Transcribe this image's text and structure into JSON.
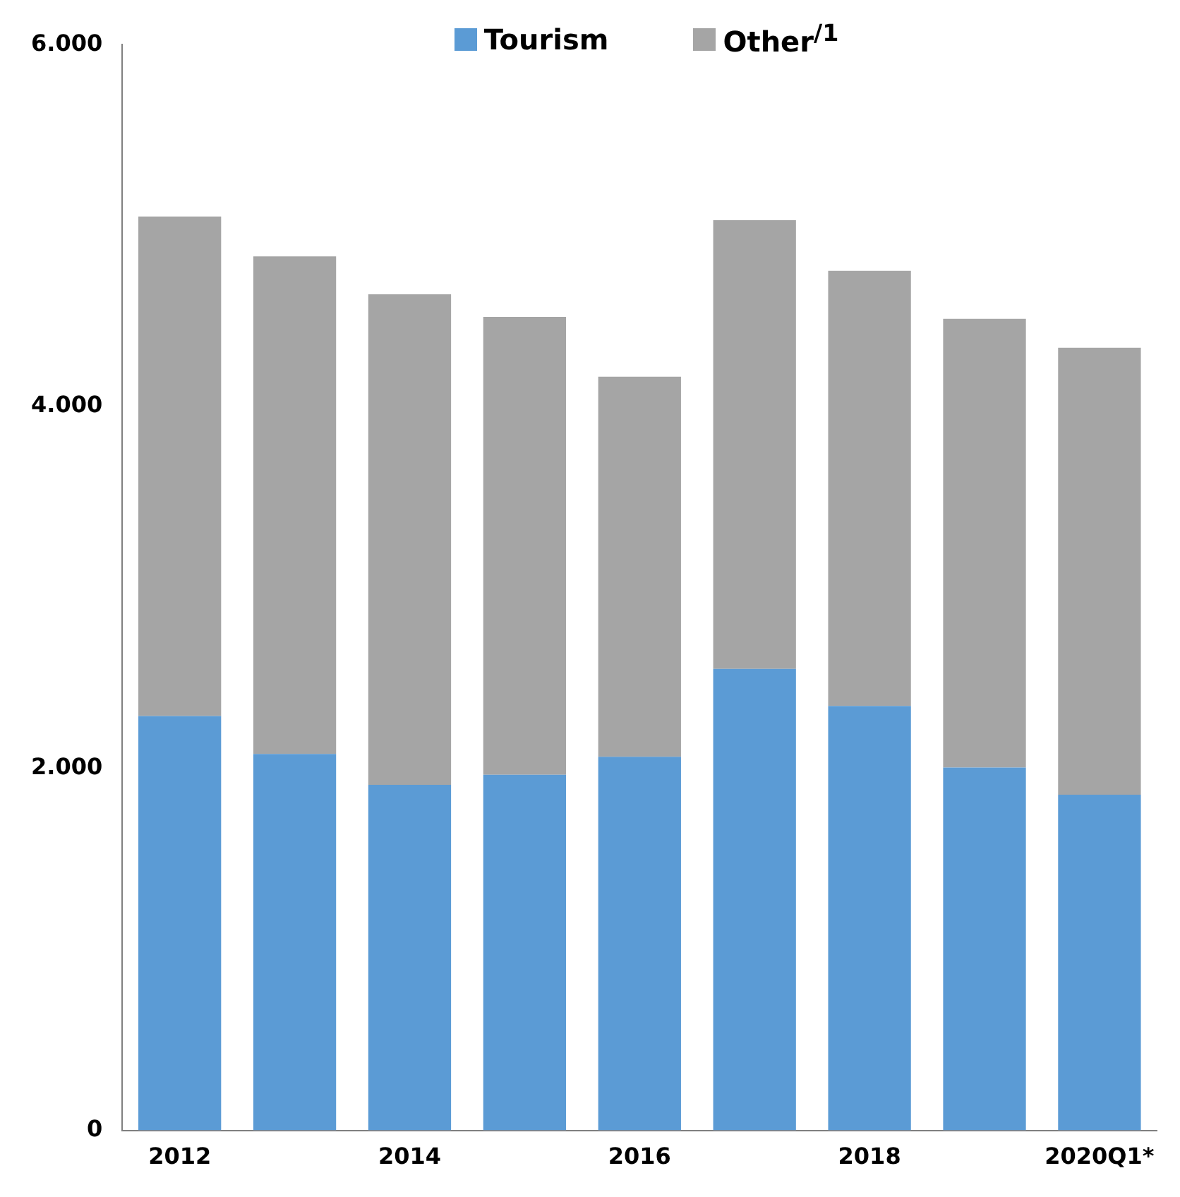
{
  "chart_data": {
    "type": "bar",
    "stacked": true,
    "categories": [
      "2012",
      null,
      "2014",
      null,
      "2016",
      null,
      "2018",
      null,
      "2020Q1*"
    ],
    "series": [
      {
        "name": "Tourism",
        "color": "#5b9bd5",
        "values": [
          2290,
          2080,
          1910,
          1965,
          2065,
          2550,
          2345,
          2005,
          1855
        ]
      },
      {
        "name": "Other$^{/1}$",
        "color": "#a5a5a5",
        "values": [
          2760,
          2750,
          2710,
          2530,
          2100,
          2480,
          2405,
          2480,
          2470
        ]
      }
    ],
    "ylim": [
      0,
      6000
    ],
    "yticks": [
      {
        "value": 0,
        "label": "0"
      },
      {
        "value": 2000,
        "label": "2.000"
      },
      {
        "value": 4000,
        "label": "4.000"
      },
      {
        "value": 6000,
        "label": "6.000"
      }
    ],
    "grid": false,
    "legend": "top"
  }
}
